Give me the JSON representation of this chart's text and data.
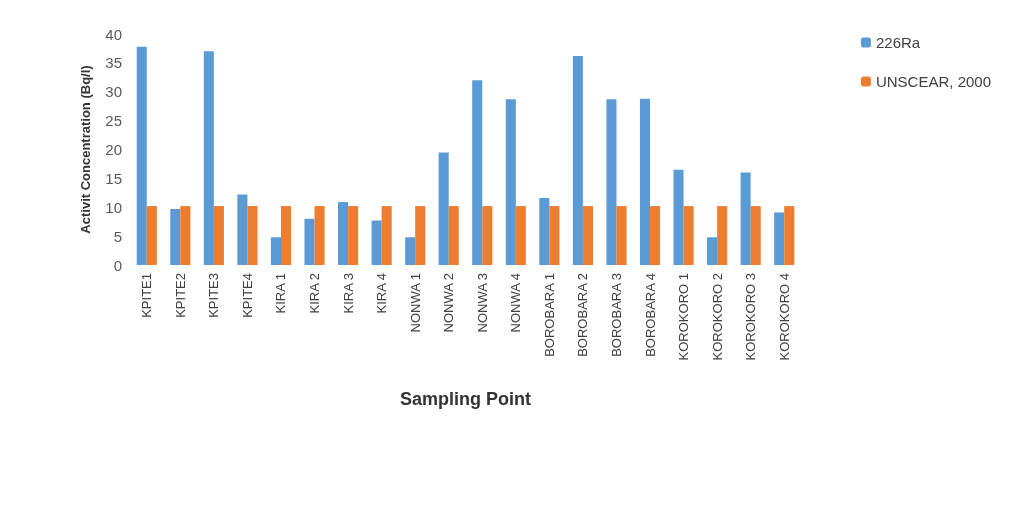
{
  "chart_data": {
    "type": "bar",
    "xlabel": "Sampling Point",
    "ylabel": "Activit Concentration (Bq/l)",
    "categories": [
      "KPITE1",
      "KPITE2",
      "KPITE3",
      "KPITE4",
      "KIRA 1",
      "KIRA 2",
      "KIRA 3",
      "KIRA 4",
      "NONWA 1",
      "NONWA 2",
      "NONWA 3",
      "NONWA 4",
      "BOROBARA 1",
      "BOROBARA 2",
      "BOROBARA 3",
      "BOROBARA 4",
      "KOROKORO 1",
      "KOROKORO 2",
      "KOROKORO 3",
      "KOROKORO 4"
    ],
    "series": [
      {
        "name": "226Ra",
        "color": "#5b9bd5",
        "values": [
          37.8,
          9.7,
          37.0,
          12.2,
          4.8,
          8.0,
          10.9,
          7.7,
          4.8,
          19.5,
          32.0,
          28.7,
          11.6,
          36.2,
          28.7,
          28.8,
          16.5,
          4.8,
          16.0,
          9.1
        ]
      },
      {
        "name": "UNSCEAR, 2000",
        "color": "#ed7d31",
        "values": [
          10.2,
          10.2,
          10.2,
          10.2,
          10.2,
          10.2,
          10.2,
          10.2,
          10.2,
          10.2,
          10.2,
          10.2,
          10.2,
          10.2,
          10.2,
          10.2,
          10.2,
          10.2,
          10.2,
          10.2
        ]
      }
    ],
    "ylim": [
      0,
      40
    ],
    "yticks": [
      0,
      5,
      10,
      15,
      20,
      25,
      30,
      35,
      40
    ],
    "grid": false,
    "legend": "top right"
  }
}
